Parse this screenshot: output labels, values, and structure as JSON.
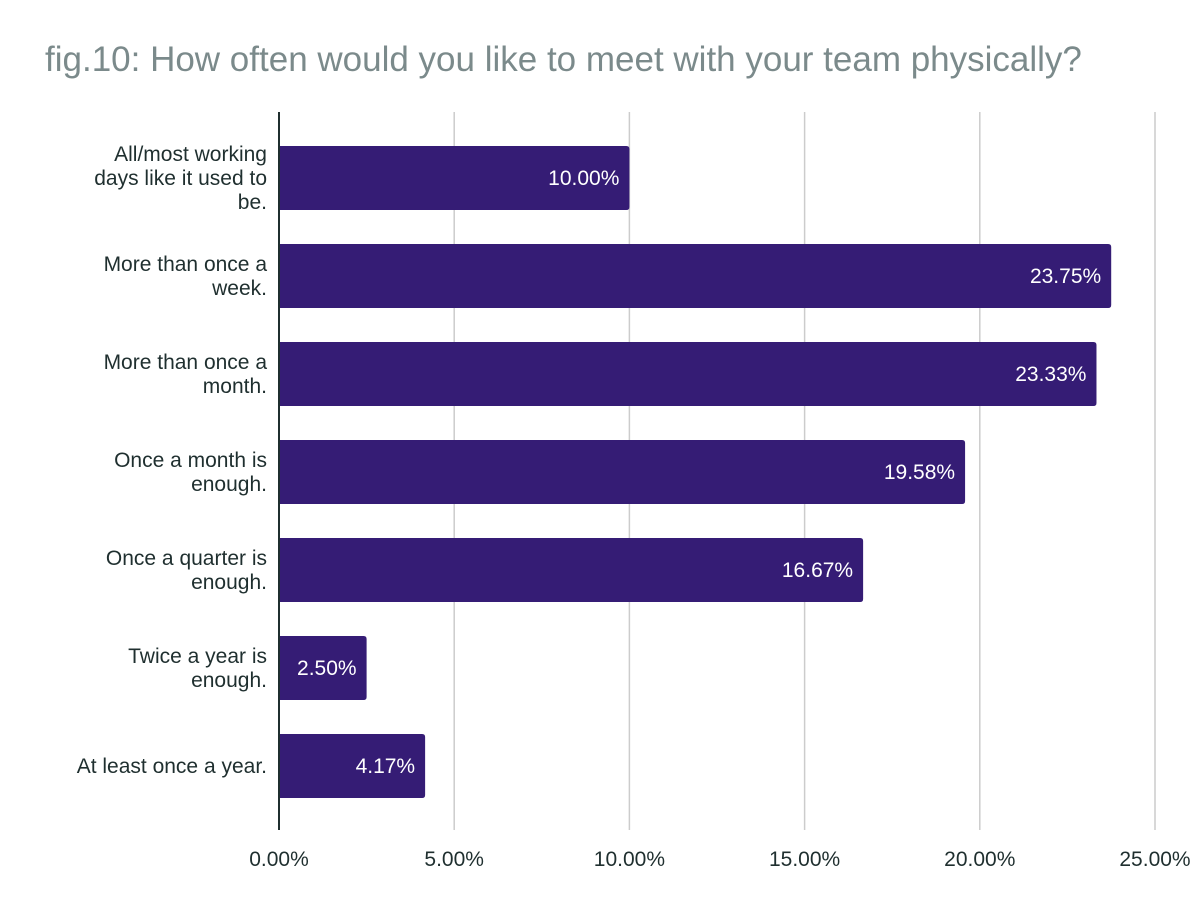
{
  "chart_data": {
    "type": "bar",
    "orientation": "horizontal",
    "title": "fig.10: How often would you like to meet with your team physically?",
    "categories": [
      [
        "All/most working",
        "days like it used to",
        "be."
      ],
      [
        "More than once a",
        "week."
      ],
      [
        "More than once a",
        "month."
      ],
      [
        "Once a month is",
        "enough."
      ],
      [
        "Once a quarter is",
        "enough."
      ],
      [
        "Twice a year is",
        "enough."
      ],
      [
        "At least once a year."
      ]
    ],
    "values": [
      10.0,
      23.75,
      23.33,
      19.58,
      16.67,
      2.5,
      4.17
    ],
    "data_labels": [
      "10.00%",
      "23.75%",
      "23.33%",
      "19.58%",
      "16.67%",
      "2.50%",
      "4.17%"
    ],
    "xlim": [
      0,
      25
    ],
    "ticks": [
      0,
      5,
      10,
      15,
      20,
      25
    ],
    "tick_labels": [
      "0.00%",
      "5.00%",
      "10.00%",
      "15.00%",
      "20.00%",
      "25.00%"
    ],
    "xlabel": "",
    "ylabel": "",
    "grid": "vertical",
    "legend": "none",
    "colors": {
      "bar": "#351c75",
      "grid": "#cccccc",
      "axis": "#1f2f2f",
      "title": "#7b8a8b"
    }
  }
}
